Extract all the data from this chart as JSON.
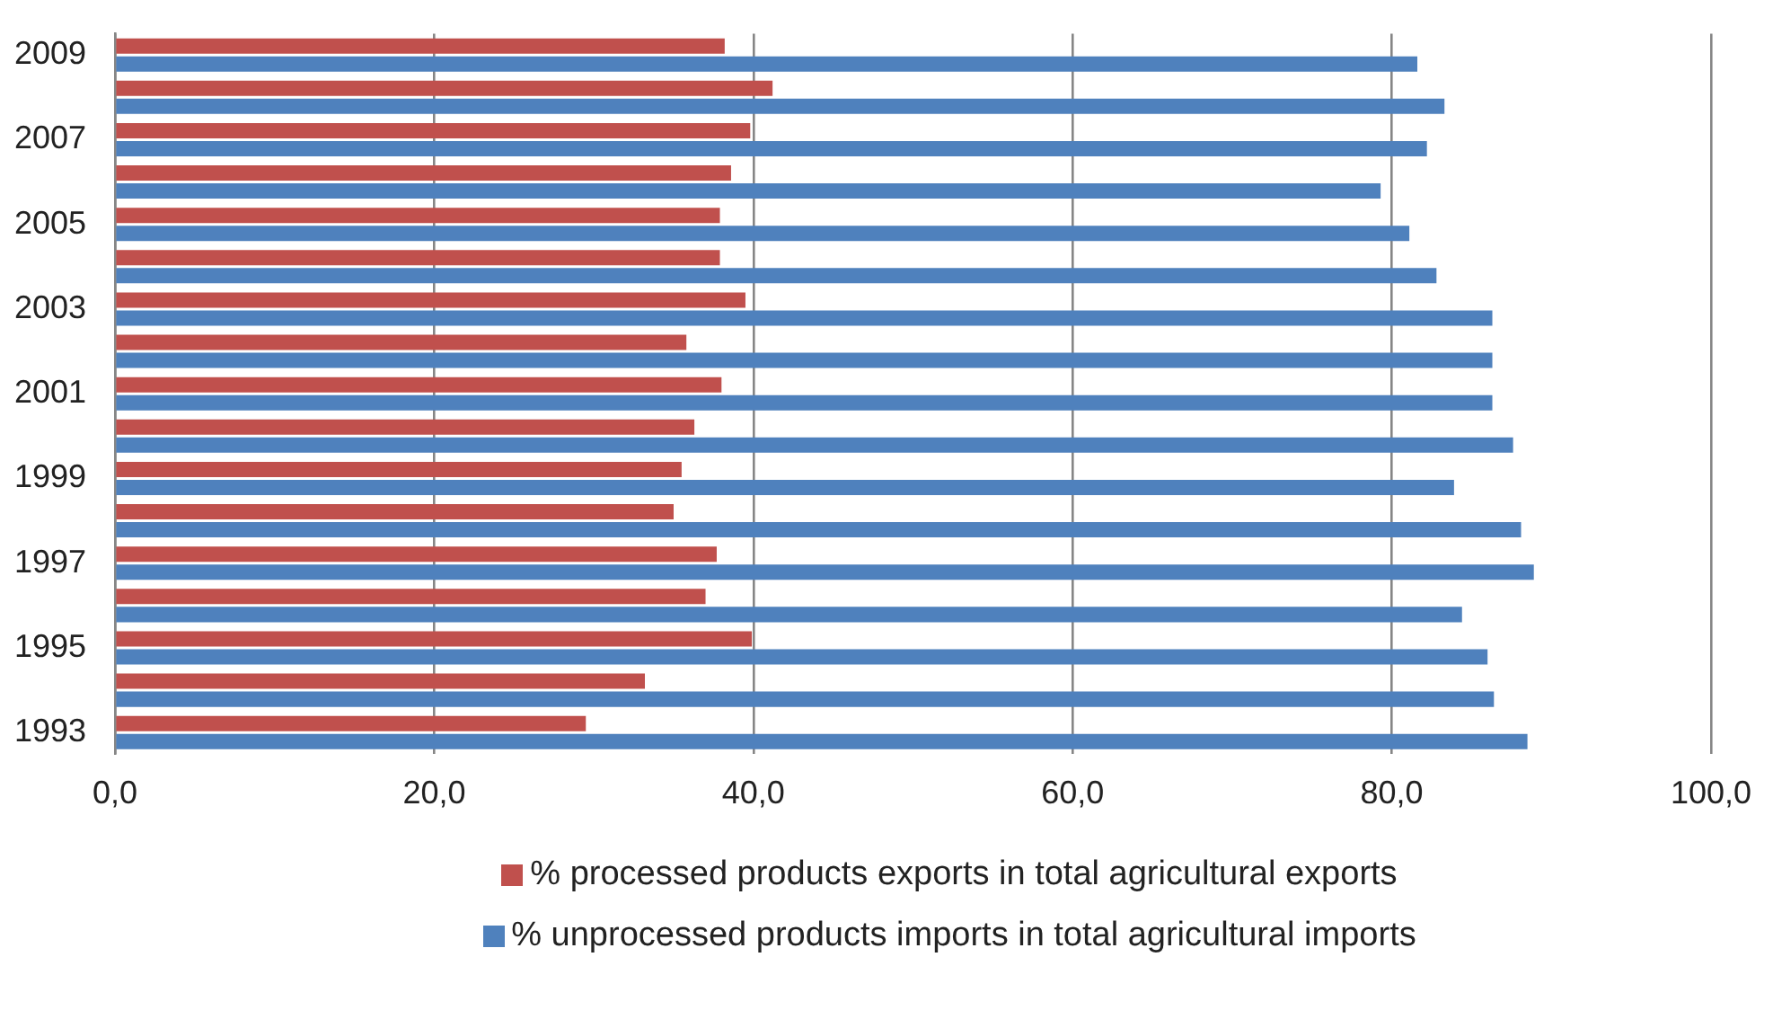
{
  "chart_data": {
    "type": "bar",
    "orientation": "horizontal",
    "categories": [
      "2009",
      null,
      "2007",
      null,
      "2005",
      null,
      "2003",
      null,
      "2001",
      null,
      "1999",
      null,
      "1997",
      null,
      "1995",
      null,
      "1993"
    ],
    "series": [
      {
        "name": "%  processed products exports in total agricultural exports",
        "color": "#c0504d",
        "values": [
          38.2,
          41.2,
          39.8,
          38.6,
          37.9,
          37.9,
          39.5,
          35.8,
          38.0,
          36.3,
          35.5,
          35.0,
          37.7,
          37.0,
          39.9,
          33.2,
          29.5
        ]
      },
      {
        "name": "% unprocessed products imports in total agricultural imports",
        "color": "#4f81bd",
        "values": [
          81.6,
          83.3,
          82.2,
          79.3,
          81.1,
          82.8,
          86.3,
          86.3,
          86.3,
          87.6,
          83.9,
          88.1,
          88.9,
          84.4,
          86.0,
          86.4,
          88.5
        ]
      }
    ],
    "xlim": [
      0,
      100
    ],
    "xticks": [
      {
        "value": 0,
        "label": "0,0"
      },
      {
        "value": 20,
        "label": "20,0"
      },
      {
        "value": 40,
        "label": "40,0"
      },
      {
        "value": 60,
        "label": "60,0"
      },
      {
        "value": 80,
        "label": "80,0"
      },
      {
        "value": 100,
        "label": "100,0"
      }
    ],
    "grid": "x",
    "legend": "bottom"
  }
}
